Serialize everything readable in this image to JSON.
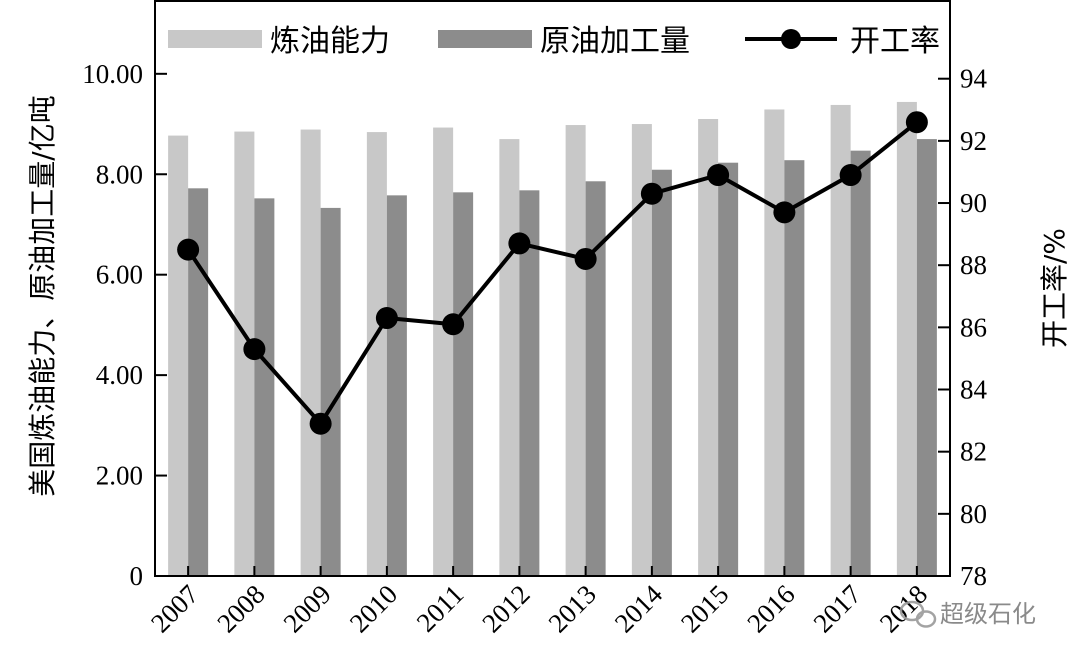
{
  "chart_data": {
    "type": "bar+line",
    "categories": [
      "2007",
      "2008",
      "2009",
      "2010",
      "2011",
      "2012",
      "2013",
      "2014",
      "2015",
      "2016",
      "2017",
      "2018"
    ],
    "series": [
      {
        "name": "炼油能力",
        "type": "bar",
        "axis": "left",
        "color": "#c8c8c8",
        "values": [
          8.77,
          8.85,
          8.89,
          8.84,
          8.93,
          8.7,
          8.98,
          9.0,
          9.1,
          9.29,
          9.38,
          9.44
        ]
      },
      {
        "name": "原油加工量",
        "type": "bar",
        "axis": "left",
        "color": "#8c8c8c",
        "values": [
          7.72,
          7.52,
          7.33,
          7.58,
          7.64,
          7.68,
          7.86,
          8.09,
          8.23,
          8.28,
          8.47,
          8.7
        ]
      },
      {
        "name": "开工率",
        "type": "line",
        "axis": "right",
        "color": "#000000",
        "values": [
          88.5,
          85.3,
          82.9,
          86.3,
          86.1,
          88.7,
          88.2,
          90.3,
          90.9,
          89.7,
          90.9,
          92.6
        ]
      }
    ],
    "y_left": {
      "label": "美国炼油能力、原油加工量/亿吨",
      "range": [
        0,
        11.45
      ],
      "ticks": [
        {
          "value": 0,
          "label": "0"
        },
        {
          "value": 2,
          "label": "2.00"
        },
        {
          "value": 4,
          "label": "4.00"
        },
        {
          "value": 6,
          "label": "6.00"
        },
        {
          "value": 8,
          "label": "8.00"
        },
        {
          "value": 10,
          "label": "10.00"
        }
      ]
    },
    "y_right": {
      "label": "开工率/%",
      "range": [
        78,
        96.5
      ],
      "ticks": [
        "78",
        "80",
        "82",
        "84",
        "86",
        "88",
        "90",
        "92",
        "94"
      ]
    },
    "legend": {
      "position": "top",
      "entries": [
        "炼油能力",
        "原油加工量",
        "开工率"
      ]
    },
    "grid": false
  },
  "watermark": {
    "text": "超级石化",
    "icon": "wechat-icon"
  }
}
